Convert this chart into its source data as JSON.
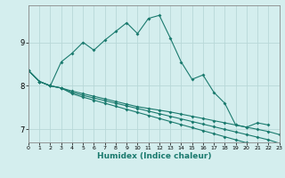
{
  "title": "",
  "xlabel": "Humidex (Indice chaleur)",
  "ylabel": "",
  "bg_color": "#d4eeee",
  "grid_color": "#b8d8d8",
  "line_color": "#1a7a6e",
  "xlim": [
    0,
    23
  ],
  "ylim": [
    6.7,
    9.85
  ],
  "yticks": [
    7,
    8,
    9
  ],
  "xticks": [
    0,
    1,
    2,
    3,
    4,
    5,
    6,
    7,
    8,
    9,
    10,
    11,
    12,
    13,
    14,
    15,
    16,
    17,
    18,
    19,
    20,
    21,
    22,
    23
  ],
  "series": [
    {
      "x": [
        0,
        1,
        2,
        3,
        4,
        5,
        6,
        7,
        8,
        9,
        10,
        11,
        12,
        13,
        14,
        15,
        16,
        17,
        18,
        19,
        20,
        21,
        22
      ],
      "y": [
        8.35,
        8.1,
        8.0,
        8.55,
        8.75,
        9.0,
        8.82,
        9.05,
        9.25,
        9.45,
        9.2,
        9.55,
        9.62,
        9.1,
        8.55,
        8.15,
        8.25,
        7.85,
        7.6,
        7.1,
        7.05,
        7.15,
        7.1
      ]
    },
    {
      "x": [
        0,
        1,
        2,
        3,
        4,
        5,
        6,
        7,
        8,
        9,
        10,
        11,
        12,
        13,
        14,
        15,
        16,
        17,
        18,
        19,
        20,
        21,
        22,
        23
      ],
      "y": [
        8.35,
        8.1,
        8.0,
        7.95,
        7.88,
        7.82,
        7.76,
        7.7,
        7.64,
        7.58,
        7.52,
        7.48,
        7.44,
        7.4,
        7.35,
        7.3,
        7.25,
        7.2,
        7.15,
        7.1,
        7.05,
        7.0,
        6.95,
        6.88
      ]
    },
    {
      "x": [
        0,
        1,
        2,
        3,
        4,
        5,
        6,
        7,
        8,
        9,
        10,
        11,
        12,
        13,
        14,
        15,
        16,
        17,
        18,
        19,
        20,
        21,
        22,
        23
      ],
      "y": [
        8.35,
        8.1,
        8.0,
        7.95,
        7.85,
        7.78,
        7.72,
        7.66,
        7.6,
        7.54,
        7.48,
        7.42,
        7.36,
        7.3,
        7.24,
        7.18,
        7.12,
        7.06,
        7.0,
        6.94,
        6.88,
        6.82,
        6.76,
        6.68
      ]
    },
    {
      "x": [
        0,
        1,
        2,
        3,
        4,
        5,
        6,
        7,
        8,
        9,
        10,
        11,
        12,
        13,
        14,
        15,
        16,
        17,
        18,
        19,
        20,
        21,
        22,
        23
      ],
      "y": [
        8.35,
        8.1,
        8.0,
        7.95,
        7.82,
        7.74,
        7.67,
        7.6,
        7.53,
        7.46,
        7.39,
        7.32,
        7.25,
        7.18,
        7.11,
        7.04,
        6.97,
        6.9,
        6.83,
        6.76,
        6.69,
        6.62,
        6.55,
        6.45
      ]
    }
  ]
}
